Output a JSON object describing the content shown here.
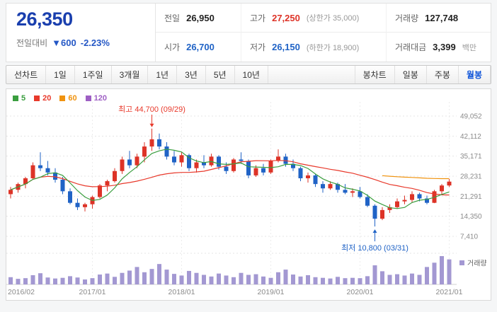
{
  "colors": {
    "price_text": "#1a3fae",
    "change_text": "#2457c5",
    "up": "#dd3327",
    "down": "#2063c6"
  },
  "header": {
    "price": "26,350",
    "change_label": "전일대비",
    "change_arrow": "▼",
    "change_value": "600",
    "change_percent": "-2.23%",
    "stats": [
      {
        "label": "전일",
        "value": "26,950"
      },
      {
        "label": "고가",
        "value": "27,250",
        "extra": "(상한가 35,000)",
        "value_color": "#dd3327"
      },
      {
        "label": "거래량",
        "value": "127,748"
      },
      {
        "label": "시가",
        "value": "26,700",
        "value_color": "#2063c6"
      },
      {
        "label": "저가",
        "value": "26,150",
        "extra": "(하한가 18,900)",
        "value_color": "#2063c6"
      },
      {
        "label": "거래대금",
        "value": "3,399",
        "unit": "백만"
      }
    ]
  },
  "toolbar": {
    "left_group_label": "선차트",
    "left_tabs": [
      "1일",
      "1주일",
      "3개월",
      "1년",
      "3년",
      "5년",
      "10년"
    ],
    "right_group_label": "봉차트",
    "right_tabs": [
      "일봉",
      "주봉",
      "월봉"
    ],
    "active_right_tab": "월봉"
  },
  "chart_data": {
    "type": "candlestick",
    "interval": "monthly",
    "start_month": "2016/02",
    "up_color": "#dd3327",
    "down_color": "#2063c6",
    "volume_color": "#a398d2",
    "volume_legend": "거래량",
    "ylim": [
      7410,
      49052
    ],
    "y_ticks": [
      49052,
      42112,
      35171,
      28231,
      21291,
      14350,
      7410
    ],
    "y_tick_labels": [
      "49,052",
      "42,112",
      "35,171",
      "28,231",
      "21,291",
      "14,350",
      "7,410"
    ],
    "x_ticks": [
      {
        "label": "2016/02",
        "index": 0
      },
      {
        "label": "2017/01",
        "index": 11
      },
      {
        "label": "2018/01",
        "index": 23
      },
      {
        "label": "2019/01",
        "index": 35
      },
      {
        "label": "2020/01",
        "index": 47
      },
      {
        "label": "2021/01",
        "index": 59
      }
    ],
    "legend": [
      {
        "label": "5",
        "color": "#3a9e3f"
      },
      {
        "label": "20",
        "color": "#e8392b"
      },
      {
        "label": "60",
        "color": "#f0930f"
      },
      {
        "label": "120",
        "color": "#9e5fc4"
      }
    ],
    "ma_config": [
      {
        "period": 60,
        "color": "#f0930f",
        "start": 50
      },
      {
        "period": 20,
        "color": "#e8392b",
        "start": 0
      },
      {
        "period": 5,
        "color": "#3a9e3f",
        "start": 0
      }
    ],
    "annotations": {
      "high": {
        "text": "최고 44,700 (09/29)",
        "index": 19,
        "price": 44700,
        "color": "#e8392b"
      },
      "low": {
        "text": "최저 10,800 (03/31)",
        "index": 49,
        "price": 10800,
        "color": "#2063c6"
      }
    },
    "candles": [
      [
        22000,
        24500,
        20500,
        23500
      ],
      [
        23500,
        26000,
        22500,
        25500
      ],
      [
        25500,
        28000,
        24000,
        27500
      ],
      [
        27500,
        33000,
        27000,
        32000
      ],
      [
        32000,
        36500,
        30000,
        31000
      ],
      [
        31000,
        33500,
        28500,
        29500
      ],
      [
        29500,
        31000,
        26000,
        27000
      ],
      [
        27000,
        28000,
        22000,
        23000
      ],
      [
        23000,
        24000,
        18500,
        19000
      ],
      [
        19000,
        20500,
        16500,
        17500
      ],
      [
        17500,
        19000,
        16000,
        18500
      ],
      [
        18500,
        21500,
        17000,
        21000
      ],
      [
        21000,
        25500,
        20500,
        25000
      ],
      [
        25000,
        27000,
        23000,
        26500
      ],
      [
        26500,
        31000,
        26000,
        30000
      ],
      [
        30000,
        35000,
        29000,
        34000
      ],
      [
        34000,
        37000,
        31000,
        32000
      ],
      [
        32000,
        36000,
        31000,
        35000
      ],
      [
        35000,
        40000,
        33000,
        38500
      ],
      [
        38500,
        44700,
        37000,
        41000
      ],
      [
        41000,
        43000,
        37500,
        38500
      ],
      [
        38500,
        40000,
        34000,
        35000
      ],
      [
        35000,
        37000,
        32000,
        33000
      ],
      [
        33000,
        36500,
        31500,
        35500
      ],
      [
        35500,
        36000,
        30000,
        31000
      ],
      [
        31000,
        34000,
        29500,
        33000
      ],
      [
        33000,
        35500,
        31000,
        32000
      ],
      [
        32000,
        36000,
        31500,
        35000
      ],
      [
        35000,
        35500,
        30500,
        31500
      ],
      [
        31500,
        33000,
        29000,
        30000
      ],
      [
        30000,
        34500,
        29500,
        34000
      ],
      [
        34000,
        36500,
        32500,
        33500
      ],
      [
        33500,
        34000,
        27500,
        28500
      ],
      [
        28500,
        32000,
        28000,
        31000
      ],
      [
        31000,
        32500,
        28500,
        29500
      ],
      [
        29500,
        34000,
        29000,
        33500
      ],
      [
        33500,
        37500,
        33000,
        35000
      ],
      [
        35000,
        36000,
        31500,
        32500
      ],
      [
        32500,
        34000,
        30000,
        31000
      ],
      [
        31000,
        31500,
        26500,
        27500
      ],
      [
        27500,
        29500,
        26000,
        28500
      ],
      [
        28500,
        29000,
        24500,
        25500
      ],
      [
        25500,
        26500,
        22500,
        24000
      ],
      [
        24000,
        26500,
        23500,
        25500
      ],
      [
        25500,
        26000,
        22500,
        23500
      ],
      [
        23500,
        25500,
        22000,
        22500
      ],
      [
        22500,
        24000,
        21000,
        23000
      ],
      [
        23000,
        24500,
        20500,
        21000
      ],
      [
        21000,
        22000,
        17500,
        18000
      ],
      [
        18000,
        18500,
        10800,
        13500
      ],
      [
        13500,
        17500,
        13000,
        16500
      ],
      [
        16500,
        18500,
        15500,
        17500
      ],
      [
        17500,
        20500,
        17000,
        19500
      ],
      [
        19500,
        21500,
        18500,
        20000
      ],
      [
        20000,
        23000,
        19000,
        22000
      ],
      [
        22000,
        22500,
        19500,
        20500
      ],
      [
        20500,
        21500,
        18500,
        19000
      ],
      [
        19000,
        23500,
        18900,
        23000
      ],
      [
        23000,
        25500,
        22000,
        25000
      ],
      [
        25000,
        27250,
        24500,
        26350
      ]
    ],
    "volumes": [
      110,
      85,
      95,
      140,
      170,
      105,
      90,
      100,
      125,
      105,
      75,
      95,
      150,
      165,
      115,
      175,
      210,
      265,
      185,
      235,
      310,
      225,
      160,
      135,
      205,
      175,
      145,
      120,
      165,
      135,
      110,
      175,
      145,
      155,
      120,
      100,
      185,
      225,
      150,
      120,
      140,
      110,
      100,
      90,
      115,
      95,
      100,
      95,
      125,
      290,
      200,
      145,
      155,
      135,
      165,
      145,
      265,
      330,
      430,
      380
    ]
  }
}
